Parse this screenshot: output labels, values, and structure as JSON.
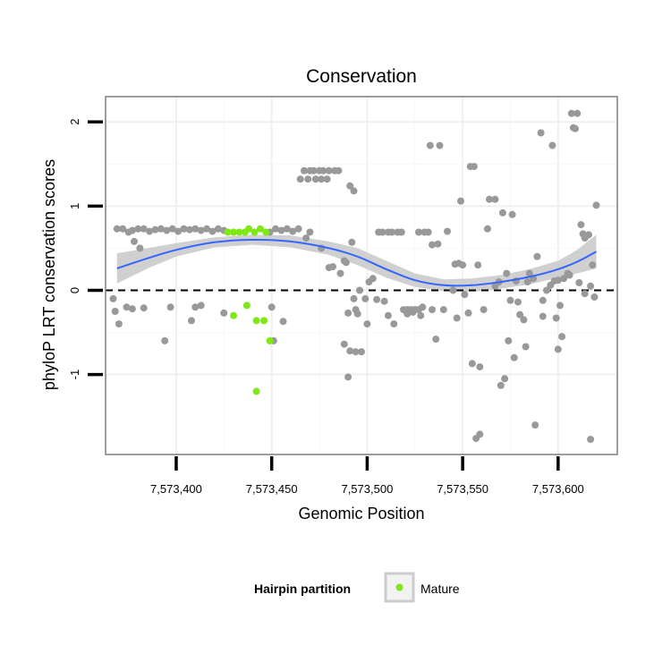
{
  "chart_data": {
    "type": "scatter",
    "title": "Conservation",
    "xlabel": "Genomic Position",
    "ylabel": "phyloP LRT conservation scores",
    "xlim": [
      7573363,
      7573631
    ],
    "ylim": [
      -1.95,
      2.3
    ],
    "x_ticks": [
      7573400,
      7573450,
      7573500,
      7573550,
      7573600
    ],
    "x_tick_labels": [
      "7,573,400",
      "7,573,450",
      "7,573,500",
      "7,573,550",
      "7,573,600"
    ],
    "y_ticks": [
      -1,
      0,
      1,
      2
    ],
    "y_tick_labels": [
      "-1",
      "0",
      "1",
      "2"
    ],
    "grid": true,
    "reference_line": {
      "y": 0,
      "style": "dashed"
    },
    "legend": {
      "title": "Hairpin partition",
      "position": "bottom",
      "entries": [
        {
          "label": "Mature",
          "color": "#7FE817"
        }
      ]
    },
    "colors": {
      "other": "#999999",
      "mature": "#7FE817",
      "smooth": "#3366FF",
      "band": "#C8C8C8"
    },
    "series": [
      {
        "name": "Mature",
        "color": "#7FE817",
        "points": [
          [
            7573427,
            0.69
          ],
          [
            7573430,
            0.69
          ],
          [
            7573433,
            0.69
          ],
          [
            7573436,
            0.69
          ],
          [
            7573438,
            0.73
          ],
          [
            7573441,
            0.69
          ],
          [
            7573444,
            0.73
          ],
          [
            7573447,
            0.69
          ],
          [
            7573430,
            -0.3
          ],
          [
            7573437,
            -0.18
          ],
          [
            7573442,
            -0.36
          ],
          [
            7573446,
            -0.36
          ],
          [
            7573449,
            -0.6
          ],
          [
            7573442,
            -1.2
          ]
        ]
      },
      {
        "color": "#999999",
        "points": [
          [
            7573369,
            0.73
          ],
          [
            7573372,
            0.73
          ],
          [
            7573375,
            0.69
          ],
          [
            7573377,
            0.71
          ],
          [
            7573380,
            0.73
          ],
          [
            7573383,
            0.73
          ],
          [
            7573386,
            0.7
          ],
          [
            7573389,
            0.72
          ],
          [
            7573392,
            0.73
          ],
          [
            7573395,
            0.71
          ],
          [
            7573398,
            0.73
          ],
          [
            7573401,
            0.7
          ],
          [
            7573404,
            0.73
          ],
          [
            7573407,
            0.72
          ],
          [
            7573410,
            0.73
          ],
          [
            7573413,
            0.71
          ],
          [
            7573416,
            0.73
          ],
          [
            7573419,
            0.7
          ],
          [
            7573422,
            0.73
          ],
          [
            7573425,
            0.71
          ],
          [
            7573381,
            0.5
          ],
          [
            7573378,
            0.58
          ],
          [
            7573367,
            -0.1
          ],
          [
            7573368,
            -0.25
          ],
          [
            7573370,
            -0.4
          ],
          [
            7573374,
            -0.2
          ],
          [
            7573377,
            -0.22
          ],
          [
            7573383,
            -0.21
          ],
          [
            7573394,
            -0.6
          ],
          [
            7573397,
            -0.2
          ],
          [
            7573408,
            -0.36
          ],
          [
            7573410,
            -0.2
          ],
          [
            7573413,
            -0.18
          ],
          [
            7573425,
            -0.27
          ],
          [
            7573449,
            0.69
          ],
          [
            7573452,
            0.73
          ],
          [
            7573455,
            0.71
          ],
          [
            7573458,
            0.73
          ],
          [
            7573461,
            0.7
          ],
          [
            7573464,
            0.73
          ],
          [
            7573450,
            -0.2
          ],
          [
            7573456,
            -0.37
          ],
          [
            7573451,
            -0.6
          ],
          [
            7573465,
            1.32
          ],
          [
            7573467,
            1.42
          ],
          [
            7573470,
            1.42
          ],
          [
            7573472,
            1.42
          ],
          [
            7573475,
            1.42
          ],
          [
            7573477,
            1.42
          ],
          [
            7573480,
            1.42
          ],
          [
            7573483,
            1.42
          ],
          [
            7573485,
            1.42
          ],
          [
            7573469,
            1.32
          ],
          [
            7573473,
            1.32
          ],
          [
            7573476,
            1.32
          ],
          [
            7573479,
            1.32
          ],
          [
            7573468,
            0.62
          ],
          [
            7573470,
            0.69
          ],
          [
            7573476,
            0.5
          ],
          [
            7573480,
            0.27
          ],
          [
            7573482,
            0.28
          ],
          [
            7573486,
            0.2
          ],
          [
            7573488,
            0.35
          ],
          [
            7573489,
            0.33
          ],
          [
            7573491,
            1.24
          ],
          [
            7573493,
            1.18
          ],
          [
            7573492,
            0.57
          ],
          [
            7573490,
            -0.27
          ],
          [
            7573493,
            -0.1
          ],
          [
            7573494,
            -0.23
          ],
          [
            7573495,
            -0.28
          ],
          [
            7573488,
            -0.64
          ],
          [
            7573491,
            -0.72
          ],
          [
            7573494,
            -0.73
          ],
          [
            7573497,
            -0.73
          ],
          [
            7573490,
            -1.03
          ],
          [
            7573496,
            0.0
          ],
          [
            7573499,
            -0.1
          ],
          [
            7573500,
            -0.4
          ],
          [
            7573501,
            0.1
          ],
          [
            7573503,
            0.14
          ],
          [
            7573505,
            -0.11
          ],
          [
            7573506,
            0.69
          ],
          [
            7573508,
            0.69
          ],
          [
            7573511,
            0.69
          ],
          [
            7573513,
            0.69
          ],
          [
            7573516,
            0.69
          ],
          [
            7573518,
            0.69
          ],
          [
            7573509,
            -0.13
          ],
          [
            7573511,
            -0.3
          ],
          [
            7573514,
            -0.4
          ],
          [
            7573519,
            -0.23
          ],
          [
            7573521,
            -0.23
          ],
          [
            7573523,
            -0.23
          ],
          [
            7573525,
            -0.23
          ],
          [
            7573527,
            -0.23
          ],
          [
            7573529,
            -0.2
          ],
          [
            7573521,
            -0.28
          ],
          [
            7573524,
            -0.26
          ],
          [
            7573528,
            -0.3
          ],
          [
            7573527,
            0.69
          ],
          [
            7573530,
            0.69
          ],
          [
            7573532,
            0.69
          ],
          [
            7573534,
            0.54
          ],
          [
            7573537,
            0.55
          ],
          [
            7573534,
            -0.23
          ],
          [
            7573536,
            -0.58
          ],
          [
            7573540,
            -0.23
          ],
          [
            7573533,
            1.72
          ],
          [
            7573538,
            1.72
          ],
          [
            7573542,
            0.7
          ],
          [
            7573545,
            0.0
          ],
          [
            7573546,
            0.31
          ],
          [
            7573548,
            0.32
          ],
          [
            7573550,
            0.3
          ],
          [
            7573549,
            1.06
          ],
          [
            7573547,
            -0.33
          ],
          [
            7573551,
            -0.05
          ],
          [
            7573553,
            -0.27
          ],
          [
            7573554,
            1.47
          ],
          [
            7573556,
            1.47
          ],
          [
            7573555,
            -0.87
          ],
          [
            7573559,
            -0.91
          ],
          [
            7573558,
            0.3
          ],
          [
            7573557,
            -1.76
          ],
          [
            7573559,
            -1.71
          ],
          [
            7573561,
            -0.23
          ],
          [
            7573563,
            0.73
          ],
          [
            7573564,
            1.08
          ],
          [
            7573567,
            1.08
          ],
          [
            7573567,
            0.05
          ],
          [
            7573569,
            0.1
          ],
          [
            7573571,
            0.92
          ],
          [
            7573573,
            0.2
          ],
          [
            7573574,
            -0.6
          ],
          [
            7573575,
            -0.12
          ],
          [
            7573576,
            0.9
          ],
          [
            7573578,
            0.11
          ],
          [
            7573577,
            -0.8
          ],
          [
            7573579,
            -0.14
          ],
          [
            7573580,
            -0.29
          ],
          [
            7573582,
            -0.35
          ],
          [
            7573583,
            -0.67
          ],
          [
            7573570,
            -1.13
          ],
          [
            7573572,
            -1.05
          ],
          [
            7573584,
            0.1
          ],
          [
            7573585,
            0.2
          ],
          [
            7573587,
            0.14
          ],
          [
            7573589,
            0.4
          ],
          [
            7573591,
            1.87
          ],
          [
            7573592,
            -0.12
          ],
          [
            7573592,
            -0.31
          ],
          [
            7573588,
            -1.6
          ],
          [
            7573594,
            0.0
          ],
          [
            7573596,
            0.06
          ],
          [
            7573597,
            1.72
          ],
          [
            7573598,
            0.11
          ],
          [
            7573600,
            0.12
          ],
          [
            7573599,
            -0.33
          ],
          [
            7573601,
            -0.18
          ],
          [
            7573600,
            -0.7
          ],
          [
            7573602,
            -0.55
          ],
          [
            7573603,
            0.14
          ],
          [
            7573605,
            0.2
          ],
          [
            7573606,
            0.18
          ],
          [
            7573607,
            2.1
          ],
          [
            7573610,
            2.1
          ],
          [
            7573608,
            1.93
          ],
          [
            7573609,
            1.92
          ],
          [
            7573611,
            0.09
          ],
          [
            7573612,
            0.78
          ],
          [
            7573613,
            0.67
          ],
          [
            7573614,
            0.62
          ],
          [
            7573616,
            0.66
          ],
          [
            7573617,
            0.05
          ],
          [
            7573618,
            0.3
          ],
          [
            7573619,
            -0.08
          ],
          [
            7573614,
            -0.04
          ],
          [
            7573617,
            -1.77
          ],
          [
            7573620,
            1.01
          ]
        ]
      }
    ],
    "smooth": {
      "color": "#3366FF",
      "x": [
        7573369,
        7573385,
        7573400,
        7573420,
        7573440,
        7573460,
        7573480,
        7573495,
        7573510,
        7573525,
        7573540,
        7573555,
        7573570,
        7573585,
        7573600,
        7573610,
        7573620
      ],
      "y": [
        0.26,
        0.38,
        0.48,
        0.57,
        0.6,
        0.58,
        0.5,
        0.4,
        0.25,
        0.12,
        0.06,
        0.06,
        0.1,
        0.16,
        0.25,
        0.34,
        0.46
      ],
      "band": [
        0.18,
        0.12,
        0.08,
        0.06,
        0.06,
        0.07,
        0.08,
        0.1,
        0.1,
        0.08,
        0.07,
        0.08,
        0.08,
        0.09,
        0.1,
        0.14,
        0.2
      ]
    }
  }
}
